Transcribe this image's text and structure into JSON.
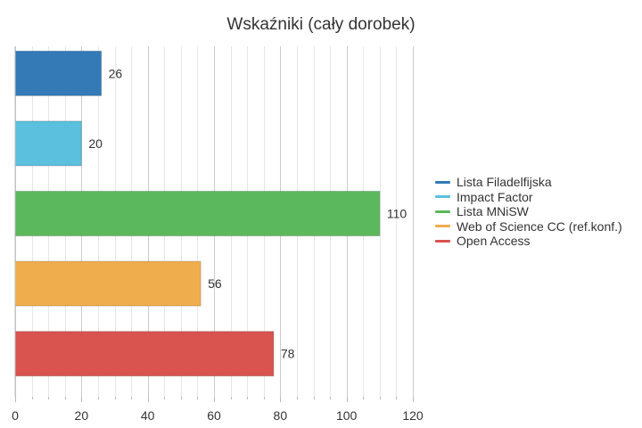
{
  "chart_data": {
    "type": "bar",
    "orientation": "horizontal",
    "title": "Wskaźniki (cały dorobek)",
    "xlabel": "",
    "ylabel": "",
    "xlim": [
      0,
      120
    ],
    "x_ticks": [
      "0",
      "20",
      "40",
      "60",
      "80",
      "100",
      "120"
    ],
    "grid": true,
    "legend_position": "right",
    "series": [
      {
        "name": "Lista Filadelfijska",
        "value": 26,
        "color": "#337ab7"
      },
      {
        "name": "Impact Factor",
        "value": 20,
        "color": "#5bc0de"
      },
      {
        "name": "Lista MNiSW",
        "value": 110,
        "color": "#5cb85c"
      },
      {
        "name": "Web of Science CC (ref.konf.)",
        "value": 56,
        "color": "#f0ad4e"
      },
      {
        "name": "Open Access",
        "value": 78,
        "color": "#d9534f"
      }
    ]
  }
}
